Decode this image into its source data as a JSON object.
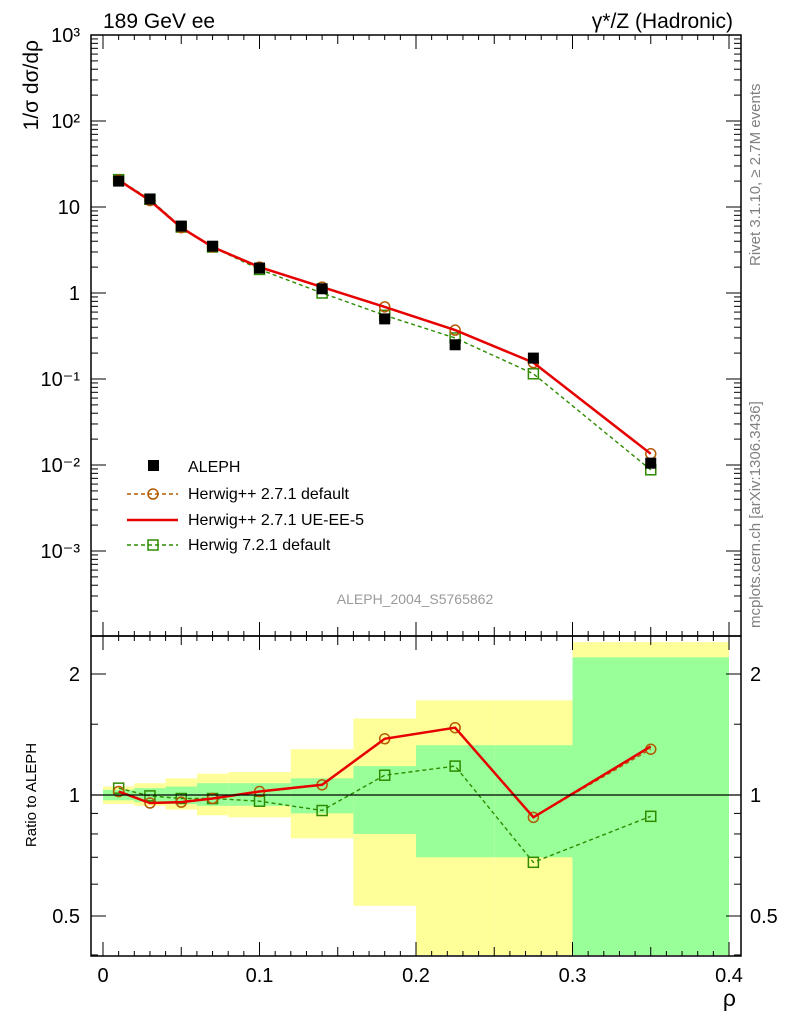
{
  "header": {
    "left": "189 GeV ee",
    "right": "γ*/Z (Hadronic)"
  },
  "side_labels": {
    "rivet": "Rivet 3.1.10, ≥ 2.7M events",
    "mcplots": "mcplots.cern.ch [arXiv:1306.3436]"
  },
  "analysis_label": "ALEPH_2004_S5765862",
  "colors": {
    "data": "#000000",
    "herwig271_default": "#b35900",
    "herwig271_ueee5": "#e60000",
    "herwig721_default": "#2e8b00",
    "band_inner": "#99ff99",
    "band_outer": "#ffff99"
  },
  "chart_data": [
    {
      "type": "scatter",
      "panel": "main",
      "ylabel": "1/σ dσ/dρ",
      "yscale": "log",
      "xlim": [
        0,
        0.4
      ],
      "ylim": [
        0.0001,
        1000
      ],
      "ytick_labels": [
        "10⁻³",
        "10⁻²",
        "10⁻¹",
        "1",
        "10",
        "10²",
        "10³"
      ],
      "legend_position": "lower-left",
      "series": [
        {
          "name": "ALEPH",
          "style": "data",
          "x": [
            0.01,
            0.03,
            0.05,
            0.07,
            0.1,
            0.14,
            0.18,
            0.225,
            0.275,
            0.35
          ],
          "values": [
            20.0,
            12.4,
            6.0,
            3.5,
            1.95,
            1.12,
            0.5,
            0.25,
            0.175,
            0.0105
          ]
        },
        {
          "name": "Herwig++ 2.7.1 default",
          "style": "open-circle-dashed",
          "x": [
            0.01,
            0.03,
            0.05,
            0.07,
            0.1,
            0.14,
            0.18,
            0.225,
            0.275,
            0.35
          ],
          "values": [
            20.5,
            11.9,
            5.75,
            3.43,
            2.0,
            1.17,
            0.69,
            0.37,
            0.155,
            0.0135
          ]
        },
        {
          "name": "Herwig++ 2.7.1 UE-EE-5",
          "style": "solid-line",
          "x": [
            0.01,
            0.03,
            0.05,
            0.07,
            0.1,
            0.14,
            0.18,
            0.225,
            0.275,
            0.35
          ],
          "values": [
            20.5,
            11.9,
            5.75,
            3.43,
            2.0,
            1.17,
            0.69,
            0.37,
            0.155,
            0.0135
          ]
        },
        {
          "name": "Herwig 7.2.1 default",
          "style": "open-square-dashed",
          "x": [
            0.01,
            0.03,
            0.05,
            0.07,
            0.1,
            0.14,
            0.18,
            0.225,
            0.275,
            0.35
          ],
          "values": [
            20.8,
            12.3,
            5.85,
            3.43,
            1.88,
            1.0,
            0.55,
            0.3,
            0.115,
            0.0088
          ]
        }
      ]
    },
    {
      "type": "line",
      "panel": "ratio",
      "xlabel": "ρ",
      "ylabel": "Ratio to ALEPH",
      "yscale": "log",
      "xlim": [
        0,
        0.4
      ],
      "ylim": [
        0.35,
        2.4
      ],
      "xtick_labels": [
        "0",
        "0.1",
        "0.2",
        "0.3",
        "0.4"
      ],
      "ytick_labels": [
        "0.5",
        "1",
        "2"
      ],
      "reference_line": 1,
      "bands": {
        "edges": [
          0.0,
          0.02,
          0.04,
          0.06,
          0.08,
          0.12,
          0.16,
          0.2,
          0.25,
          0.3,
          0.4
        ],
        "inner": [
          [
            0.97,
            1.03
          ],
          [
            0.96,
            1.04
          ],
          [
            0.95,
            1.05
          ],
          [
            0.94,
            1.07
          ],
          [
            0.94,
            1.07
          ],
          [
            0.9,
            1.1
          ],
          [
            0.8,
            1.18
          ],
          [
            0.7,
            1.33
          ],
          [
            0.7,
            1.33
          ],
          [
            0.35,
            2.2
          ]
        ],
        "outer": [
          [
            0.95,
            1.05
          ],
          [
            0.94,
            1.07
          ],
          [
            0.92,
            1.1
          ],
          [
            0.89,
            1.13
          ],
          [
            0.88,
            1.14
          ],
          [
            0.78,
            1.3
          ],
          [
            0.53,
            1.55
          ],
          [
            0.35,
            1.72
          ],
          [
            0.35,
            1.72
          ],
          [
            0.35,
            2.4
          ]
        ]
      },
      "series": [
        {
          "name": "Herwig++ 2.7.1 default",
          "style": "open-circle-dashed",
          "x": [
            0.01,
            0.03,
            0.05,
            0.07,
            0.1,
            0.14,
            0.18,
            0.225,
            0.275,
            0.35
          ],
          "values": [
            1.02,
            0.955,
            0.96,
            0.98,
            1.02,
            1.06,
            1.38,
            1.47,
            0.88,
            1.3
          ]
        },
        {
          "name": "Herwig++ 2.7.1 UE-EE-5",
          "style": "solid-line",
          "x": [
            0.01,
            0.03,
            0.05,
            0.07,
            0.1,
            0.14,
            0.18,
            0.225,
            0.275,
            0.35
          ],
          "values": [
            1.02,
            0.955,
            0.96,
            0.98,
            1.02,
            1.06,
            1.38,
            1.47,
            0.88,
            1.32
          ]
        },
        {
          "name": "Herwig 7.2.1 default",
          "style": "open-square-dashed",
          "x": [
            0.01,
            0.03,
            0.05,
            0.07,
            0.1,
            0.14,
            0.18,
            0.225,
            0.275,
            0.35
          ],
          "values": [
            1.04,
            0.995,
            0.98,
            0.98,
            0.965,
            0.915,
            1.12,
            1.18,
            0.68,
            0.885
          ]
        }
      ]
    }
  ]
}
